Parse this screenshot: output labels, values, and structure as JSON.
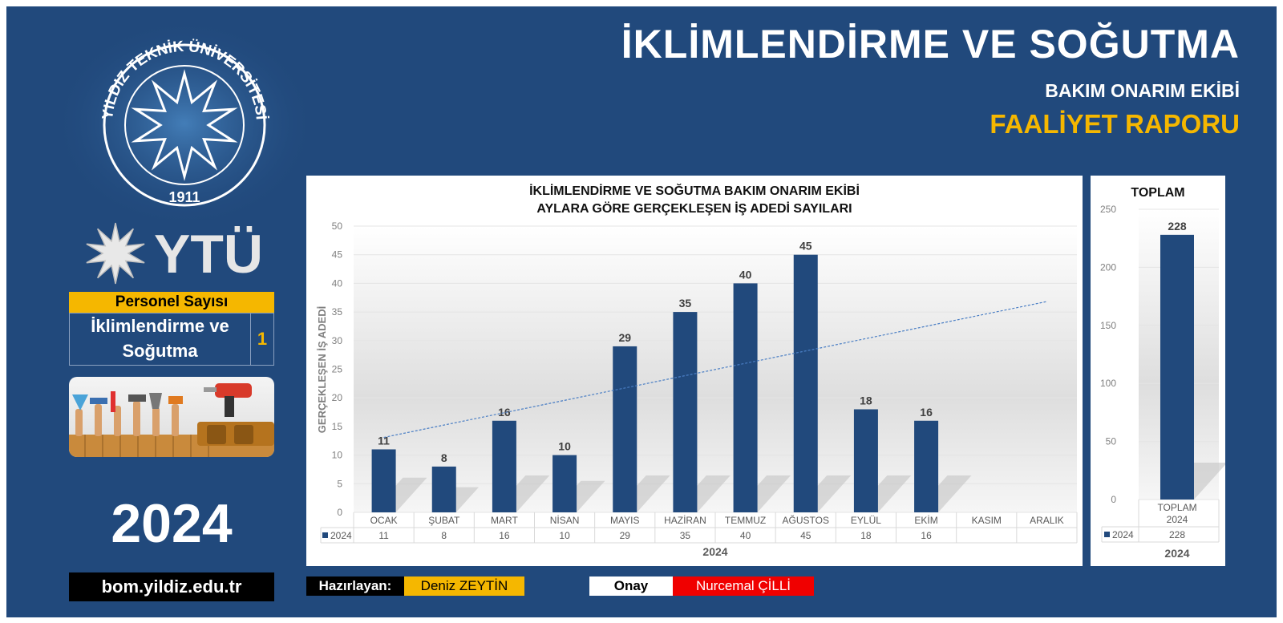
{
  "header": {
    "title": "İKLİMLENDİRME VE SOĞUTMA",
    "team": "BAKIM ONARIM EKİBİ",
    "report": "FAALİYET RAPORU"
  },
  "sidebar": {
    "seal_text": "YILDIZ TEKNİK ÜNİVERSİTESİ",
    "seal_year": "1911",
    "logo_text": "YTÜ",
    "staff": {
      "heading": "Personel Sayısı",
      "unit_line1": "İklimlendirme ve",
      "unit_line2": "Soğutma",
      "count": "1"
    },
    "year": "2024",
    "website": "bom.yildiz.edu.tr"
  },
  "footer": {
    "prepared_label": "Hazırlayan:",
    "prepared_name": "Deniz ZEYTİN",
    "approve_label": "Onay",
    "approve_name": "Nurcemal ÇİLLİ"
  },
  "colors": {
    "background": "#21497c",
    "bar": "#21497c",
    "accent": "#f5b700",
    "approve": "#f00000"
  },
  "chart_data": [
    {
      "type": "bar",
      "title_line1": "İKLİMLENDİRME VE SOĞUTMA BAKIM ONARIM EKİBİ",
      "title_line2": "AYLARA GÖRE GERÇEKLEŞEN İŞ ADEDİ SAYILARI",
      "ylabel": "GERÇEKLEŞEN İŞ ADEDİ",
      "xlabel": "2024",
      "ylim": [
        0,
        50
      ],
      "yticks": [
        0,
        5,
        10,
        15,
        20,
        25,
        30,
        35,
        40,
        45,
        50
      ],
      "categories": [
        "OCAK",
        "ŞUBAT",
        "MART",
        "NİSAN",
        "MAYIS",
        "HAZİRAN",
        "TEMMUZ",
        "AĞUSTOS",
        "EYLÜL",
        "EKİM",
        "KASIM",
        "ARALIK"
      ],
      "series": [
        {
          "name": "2024",
          "values": [
            11,
            8,
            16,
            10,
            29,
            35,
            40,
            45,
            18,
            16,
            null,
            null
          ]
        }
      ],
      "trendline": "linear",
      "grid": true,
      "data_table": true
    },
    {
      "type": "bar",
      "title": "TOPLAM",
      "xlabel": "2024",
      "ylim": [
        0,
        250
      ],
      "yticks": [
        0,
        50,
        100,
        150,
        200,
        250
      ],
      "categories": [
        "TOPLAM 2024"
      ],
      "series": [
        {
          "name": "2024",
          "values": [
            228
          ]
        }
      ],
      "grid": true,
      "data_table": true
    }
  ]
}
